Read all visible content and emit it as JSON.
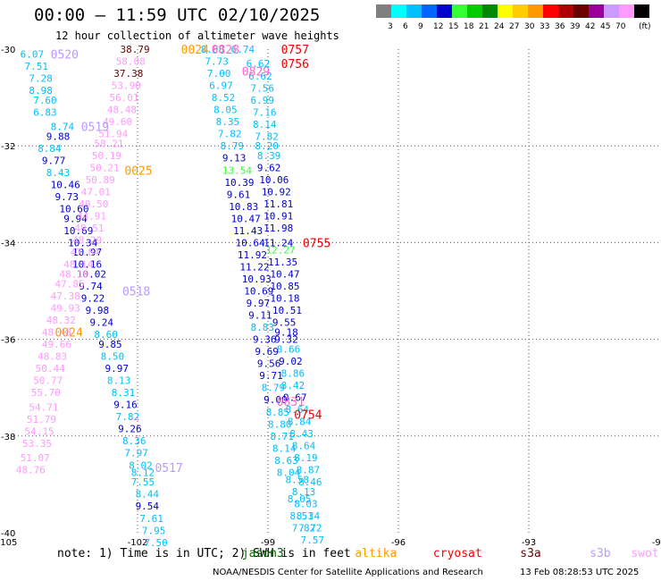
{
  "title": "00:00 – 11:59 UTC 02/10/2025",
  "subtitle": "12 hour collection of altimeter wave heights",
  "legend": {
    "unit": "(ft)",
    "bins": [
      {
        "label": "",
        "color": "#7f7f7f"
      },
      {
        "label": "3",
        "color": "#00ffff"
      },
      {
        "label": "6",
        "color": "#00bfff"
      },
      {
        "label": "9",
        "color": "#0066ff"
      },
      {
        "label": "12",
        "color": "#0000cd"
      },
      {
        "label": "15",
        "color": "#33ff33"
      },
      {
        "label": "18",
        "color": "#00cc00"
      },
      {
        "label": "21",
        "color": "#008800"
      },
      {
        "label": "24",
        "color": "#ffff00"
      },
      {
        "label": "27",
        "color": "#ffcc00"
      },
      {
        "label": "30",
        "color": "#ff9900"
      },
      {
        "label": "33",
        "color": "#ff0000"
      },
      {
        "label": "36",
        "color": "#b00000"
      },
      {
        "label": "39",
        "color": "#6a0000"
      },
      {
        "label": "42",
        "color": "#990099"
      },
      {
        "label": "45",
        "color": "#cc99ff"
      },
      {
        "label": "70",
        "color": "#ff99ff"
      },
      {
        "label": "",
        "color": "#000000"
      }
    ]
  },
  "axes": {
    "x_ticks": [
      "-105",
      "-102",
      "-99",
      "-96",
      "-93",
      "-90"
    ],
    "y_ticks": [
      "-30",
      "-32",
      "-34",
      "-36",
      "-38",
      "-40"
    ],
    "lon_range": [
      -105,
      -90
    ],
    "lat_range": [
      -40,
      -30
    ]
  },
  "pass_labels": [
    {
      "text": "0520",
      "lon": -104.0,
      "lat": -30.1,
      "color": "#bb99ff"
    },
    {
      "text": "0519",
      "lon": -103.3,
      "lat": -31.6,
      "color": "#bb99ff"
    },
    {
      "text": "0518",
      "lon": -102.35,
      "lat": -35.0,
      "color": "#bb99ff"
    },
    {
      "text": "0517",
      "lon": -101.6,
      "lat": -38.65,
      "color": "#bb99ff"
    },
    {
      "text": "0024",
      "lon": -101.0,
      "lat": -30.0,
      "color": "#ff9900"
    },
    {
      "text": "0025",
      "lon": -102.3,
      "lat": -32.5,
      "color": "#ff9900"
    },
    {
      "text": "0024",
      "lon": -103.9,
      "lat": -35.85,
      "color": "#ff9900"
    },
    {
      "text": "0828",
      "lon": -100.3,
      "lat": -30.0,
      "color": "#ff66cc"
    },
    {
      "text": "0829",
      "lon": -99.6,
      "lat": -30.45,
      "color": "#ff66cc"
    },
    {
      "text": "0831",
      "lon": -98.8,
      "lat": -37.28,
      "color": "#ff66cc"
    },
    {
      "text": "0757",
      "lon": -98.7,
      "lat": -30.0,
      "color": "#ee0000"
    },
    {
      "text": "0756",
      "lon": -98.7,
      "lat": -30.3,
      "color": "#ee0000"
    },
    {
      "text": "0755",
      "lon": -98.2,
      "lat": -34.0,
      "color": "#ee0000"
    },
    {
      "text": "0754",
      "lon": -98.4,
      "lat": -37.55,
      "color": "#ee0000"
    }
  ],
  "measurements": [
    {
      "t": "6.07",
      "lon": -104.7,
      "lat": -30.1,
      "c": "#00bfff"
    },
    {
      "t": "7.51",
      "lon": -104.6,
      "lat": -30.35,
      "c": "#00bfff"
    },
    {
      "t": "7.28",
      "lon": -104.5,
      "lat": -30.6,
      "c": "#00bfff"
    },
    {
      "t": "8.98",
      "lon": -104.5,
      "lat": -30.85,
      "c": "#00bfff"
    },
    {
      "t": "7.60",
      "lon": -104.4,
      "lat": -31.05,
      "c": "#00bfff"
    },
    {
      "t": "6.83",
      "lon": -104.4,
      "lat": -31.3,
      "c": "#00bfff"
    },
    {
      "t": "8.74",
      "lon": -104.0,
      "lat": -31.6,
      "c": "#00bfff"
    },
    {
      "t": "9.88",
      "lon": -104.1,
      "lat": -31.8,
      "c": "#0000cd"
    },
    {
      "t": "8.84",
      "lon": -104.3,
      "lat": -32.05,
      "c": "#00bfff"
    },
    {
      "t": "9.77",
      "lon": -104.2,
      "lat": -32.3,
      "c": "#0000cd"
    },
    {
      "t": "8.43",
      "lon": -104.1,
      "lat": -32.55,
      "c": "#00bfff"
    },
    {
      "t": "10.46",
      "lon": -104.0,
      "lat": -32.8,
      "c": "#0000cd"
    },
    {
      "t": "9.73",
      "lon": -103.9,
      "lat": -33.05,
      "c": "#0000cd"
    },
    {
      "t": "10.60",
      "lon": -103.8,
      "lat": -33.3,
      "c": "#0000cd"
    },
    {
      "t": "9.94",
      "lon": -103.7,
      "lat": -33.5,
      "c": "#0000cd"
    },
    {
      "t": "10.69",
      "lon": -103.7,
      "lat": -33.75,
      "c": "#0000cd"
    },
    {
      "t": "10.34",
      "lon": -103.6,
      "lat": -34.0,
      "c": "#0000cd"
    },
    {
      "t": "10.97",
      "lon": -103.5,
      "lat": -34.2,
      "c": "#0000cd"
    },
    {
      "t": "10.16",
      "lon": -103.5,
      "lat": -34.45,
      "c": "#0000cd"
    },
    {
      "t": "10.02",
      "lon": -103.4,
      "lat": -34.65,
      "c": "#0000cd"
    },
    {
      "t": "9.74",
      "lon": -103.35,
      "lat": -34.9,
      "c": "#0000cd"
    },
    {
      "t": "9.22",
      "lon": -103.3,
      "lat": -35.15,
      "c": "#0000cd"
    },
    {
      "t": "9.98",
      "lon": -103.2,
      "lat": -35.4,
      "c": "#0000cd"
    },
    {
      "t": "9.24",
      "lon": -103.1,
      "lat": -35.65,
      "c": "#0000cd"
    },
    {
      "t": "8.60",
      "lon": -103.0,
      "lat": -35.9,
      "c": "#00bfff"
    },
    {
      "t": "9.85",
      "lon": -102.9,
      "lat": -36.1,
      "c": "#0000cd"
    },
    {
      "t": "8.50",
      "lon": -102.85,
      "lat": -36.35,
      "c": "#00bfff"
    },
    {
      "t": "9.97",
      "lon": -102.75,
      "lat": -36.6,
      "c": "#0000cd"
    },
    {
      "t": "8.13",
      "lon": -102.7,
      "lat": -36.85,
      "c": "#00bfff"
    },
    {
      "t": "8.31",
      "lon": -102.6,
      "lat": -37.1,
      "c": "#00bfff"
    },
    {
      "t": "9.16",
      "lon": -102.55,
      "lat": -37.35,
      "c": "#0000cd"
    },
    {
      "t": "7.82",
      "lon": -102.5,
      "lat": -37.6,
      "c": "#00bfff"
    },
    {
      "t": "9.26",
      "lon": -102.45,
      "lat": -37.85,
      "c": "#0000cd"
    },
    {
      "t": "8.36",
      "lon": -102.35,
      "lat": -38.1,
      "c": "#00bfff"
    },
    {
      "t": "7.97",
      "lon": -102.3,
      "lat": -38.35,
      "c": "#00bfff"
    },
    {
      "t": "8.02",
      "lon": -102.2,
      "lat": -38.6,
      "c": "#00bfff"
    },
    {
      "t": "8.12",
      "lon": -102.15,
      "lat": -38.75,
      "c": "#00bfff"
    },
    {
      "t": "7.55",
      "lon": -102.15,
      "lat": -38.95,
      "c": "#00bfff"
    },
    {
      "t": "8.44",
      "lon": -102.05,
      "lat": -39.2,
      "c": "#00bfff"
    },
    {
      "t": "9.54",
      "lon": -102.05,
      "lat": -39.45,
      "c": "#0000cd"
    },
    {
      "t": "7.61",
      "lon": -101.95,
      "lat": -39.7,
      "c": "#00bfff"
    },
    {
      "t": "7.95",
      "lon": -101.9,
      "lat": -39.95,
      "c": "#00bfff"
    },
    {
      "t": "7.50",
      "lon": -101.85,
      "lat": -40.2,
      "c": "#00bfff"
    },
    {
      "t": "38.79",
      "lon": -102.4,
      "lat": -30.0,
      "c": "#6a0000"
    },
    {
      "t": "58.08",
      "lon": -102.5,
      "lat": -30.25,
      "c": "#ff99ff"
    },
    {
      "t": "37.38",
      "lon": -102.55,
      "lat": -30.5,
      "c": "#6a0000"
    },
    {
      "t": "53.90",
      "lon": -102.6,
      "lat": -30.75,
      "c": "#ff99ff"
    },
    {
      "t": "56.01",
      "lon": -102.65,
      "lat": -31.0,
      "c": "#ff99ff"
    },
    {
      "t": "48.48",
      "lon": -102.7,
      "lat": -31.25,
      "c": "#ff99ff"
    },
    {
      "t": "49.60",
      "lon": -102.8,
      "lat": -31.5,
      "c": "#ff99ff"
    },
    {
      "t": "51.94",
      "lon": -102.9,
      "lat": -31.75,
      "c": "#ff99ff"
    },
    {
      "t": "58.21",
      "lon": -103.0,
      "lat": -31.95,
      "c": "#ff99ff"
    },
    {
      "t": "50.19",
      "lon": -103.05,
      "lat": -32.2,
      "c": "#ff99ff"
    },
    {
      "t": "50.21",
      "lon": -103.1,
      "lat": -32.45,
      "c": "#ff99ff"
    },
    {
      "t": "50.89",
      "lon": -103.2,
      "lat": -32.7,
      "c": "#ff99ff"
    },
    {
      "t": "47.01",
      "lon": -103.3,
      "lat": -32.95,
      "c": "#ff99ff"
    },
    {
      "t": "49.50",
      "lon": -103.35,
      "lat": -33.2,
      "c": "#ff99ff"
    },
    {
      "t": "44.91",
      "lon": -103.4,
      "lat": -33.45,
      "c": "#ff99ff"
    },
    {
      "t": "49.51",
      "lon": -103.45,
      "lat": -33.7,
      "c": "#ff99ff"
    },
    {
      "t": "48.29",
      "lon": -103.5,
      "lat": -33.95,
      "c": "#ff99ff"
    },
    {
      "t": "47.84",
      "lon": -103.55,
      "lat": -34.2,
      "c": "#ff99ff"
    },
    {
      "t": "48.14",
      "lon": -103.7,
      "lat": -34.45,
      "c": "#ff99ff"
    },
    {
      "t": "48.10",
      "lon": -103.8,
      "lat": -34.65,
      "c": "#ff99ff"
    },
    {
      "t": "47.85",
      "lon": -103.9,
      "lat": -34.85,
      "c": "#ff99ff"
    },
    {
      "t": "47.38",
      "lon": -104.0,
      "lat": -35.1,
      "c": "#ff99ff"
    },
    {
      "t": "49.93",
      "lon": -104.0,
      "lat": -35.35,
      "c": "#ff99ff"
    },
    {
      "t": "48.32",
      "lon": -104.1,
      "lat": -35.6,
      "c": "#ff99ff"
    },
    {
      "t": "48.48",
      "lon": -104.2,
      "lat": -35.85,
      "c": "#ff99ff"
    },
    {
      "t": "49.66",
      "lon": -104.2,
      "lat": -36.1,
      "c": "#ff99ff"
    },
    {
      "t": "48.83",
      "lon": -104.3,
      "lat": -36.35,
      "c": "#ff99ff"
    },
    {
      "t": "50.44",
      "lon": -104.35,
      "lat": -36.6,
      "c": "#ff99ff"
    },
    {
      "t": "50.77",
      "lon": -104.4,
      "lat": -36.85,
      "c": "#ff99ff"
    },
    {
      "t": "55.70",
      "lon": -104.45,
      "lat": -37.1,
      "c": "#ff99ff"
    },
    {
      "t": "54.71",
      "lon": -104.5,
      "lat": -37.4,
      "c": "#ff99ff"
    },
    {
      "t": "51.79",
      "lon": -104.55,
      "lat": -37.65,
      "c": "#ff99ff"
    },
    {
      "t": "54.15",
      "lon": -104.6,
      "lat": -37.9,
      "c": "#ff99ff"
    },
    {
      "t": "53.35",
      "lon": -104.65,
      "lat": -38.15,
      "c": "#ff99ff"
    },
    {
      "t": "51.07",
      "lon": -104.7,
      "lat": -38.45,
      "c": "#ff99ff"
    },
    {
      "t": "48.76",
      "lon": -104.8,
      "lat": -38.7,
      "c": "#ff99ff"
    },
    {
      "t": "8.68",
      "lon": -100.55,
      "lat": -30.0,
      "c": "#00bfff"
    },
    {
      "t": "7.73",
      "lon": -100.45,
      "lat": -30.25,
      "c": "#00bfff"
    },
    {
      "t": "7.00",
      "lon": -100.4,
      "lat": -30.5,
      "c": "#00bfff"
    },
    {
      "t": "6.97",
      "lon": -100.35,
      "lat": -30.75,
      "c": "#00bfff"
    },
    {
      "t": "8.52",
      "lon": -100.3,
      "lat": -31.0,
      "c": "#00bfff"
    },
    {
      "t": "8.05",
      "lon": -100.25,
      "lat": -31.25,
      "c": "#00bfff"
    },
    {
      "t": "8.35",
      "lon": -100.2,
      "lat": -31.5,
      "c": "#00bfff"
    },
    {
      "t": "7.82",
      "lon": -100.15,
      "lat": -31.75,
      "c": "#00bfff"
    },
    {
      "t": "8.79",
      "lon": -100.1,
      "lat": -32.0,
      "c": "#00bfff"
    },
    {
      "t": "9.13",
      "lon": -100.05,
      "lat": -32.25,
      "c": "#0000cd"
    },
    {
      "t": "13.54",
      "lon": -100.05,
      "lat": -32.5,
      "c": "#33ff33"
    },
    {
      "t": "10.39",
      "lon": -100.0,
      "lat": -32.75,
      "c": "#0000cd"
    },
    {
      "t": "9.61",
      "lon": -99.95,
      "lat": -33.0,
      "c": "#0000cd"
    },
    {
      "t": "10.83",
      "lon": -99.9,
      "lat": -33.25,
      "c": "#0000cd"
    },
    {
      "t": "10.47",
      "lon": -99.85,
      "lat": -33.5,
      "c": "#0000cd"
    },
    {
      "t": "11.43",
      "lon": -99.8,
      "lat": -33.75,
      "c": "#0000cd"
    },
    {
      "t": "10.64",
      "lon": -99.75,
      "lat": -34.0,
      "c": "#0000cd"
    },
    {
      "t": "11.92",
      "lon": -99.7,
      "lat": -34.25,
      "c": "#0000cd"
    },
    {
      "t": "11.22",
      "lon": -99.65,
      "lat": -34.5,
      "c": "#0000cd"
    },
    {
      "t": "10.93",
      "lon": -99.6,
      "lat": -34.75,
      "c": "#0000cd"
    },
    {
      "t": "10.69",
      "lon": -99.55,
      "lat": -35.0,
      "c": "#0000cd"
    },
    {
      "t": "9.97",
      "lon": -99.5,
      "lat": -35.25,
      "c": "#0000cd"
    },
    {
      "t": "9.11",
      "lon": -99.45,
      "lat": -35.5,
      "c": "#0000cd"
    },
    {
      "t": "8.83",
      "lon": -99.4,
      "lat": -35.75,
      "c": "#00bfff"
    },
    {
      "t": "9.36",
      "lon": -99.35,
      "lat": -36.0,
      "c": "#0000cd"
    },
    {
      "t": "9.69",
      "lon": -99.3,
      "lat": -36.25,
      "c": "#0000cd"
    },
    {
      "t": "9.56",
      "lon": -99.25,
      "lat": -36.5,
      "c": "#0000cd"
    },
    {
      "t": "9.71",
      "lon": -99.2,
      "lat": -36.75,
      "c": "#0000cd"
    },
    {
      "t": "8.79",
      "lon": -99.15,
      "lat": -37.0,
      "c": "#00bfff"
    },
    {
      "t": "9.00",
      "lon": -99.1,
      "lat": -37.25,
      "c": "#0000cd"
    },
    {
      "t": "8.85",
      "lon": -99.05,
      "lat": -37.5,
      "c": "#00bfff"
    },
    {
      "t": "8.80",
      "lon": -99.0,
      "lat": -37.75,
      "c": "#00bfff"
    },
    {
      "t": "8.71",
      "lon": -98.95,
      "lat": -38.0,
      "c": "#00bfff"
    },
    {
      "t": "8.14",
      "lon": -98.9,
      "lat": -38.25,
      "c": "#00bfff"
    },
    {
      "t": "8.63",
      "lon": -98.85,
      "lat": -38.5,
      "c": "#00bfff"
    },
    {
      "t": "8.04",
      "lon": -98.8,
      "lat": -38.75,
      "c": "#00bfff"
    },
    {
      "t": "6.74",
      "lon": -99.85,
      "lat": -30.0,
      "c": "#00bfff"
    },
    {
      "t": "6.62",
      "lon": -99.5,
      "lat": -30.3,
      "c": "#00bfff"
    },
    {
      "t": "6.62",
      "lon": -99.45,
      "lat": -30.55,
      "c": "#00bfff"
    },
    {
      "t": "7.56",
      "lon": -99.4,
      "lat": -30.8,
      "c": "#00bfff"
    },
    {
      "t": "6.99",
      "lon": -99.4,
      "lat": -31.05,
      "c": "#00bfff"
    },
    {
      "t": "7.16",
      "lon": -99.35,
      "lat": -31.3,
      "c": "#00bfff"
    },
    {
      "t": "8.14",
      "lon": -99.35,
      "lat": -31.55,
      "c": "#00bfff"
    },
    {
      "t": "7.82",
      "lon": -99.3,
      "lat": -31.8,
      "c": "#00bfff"
    },
    {
      "t": "8.20",
      "lon": -99.3,
      "lat": -32.0,
      "c": "#00bfff"
    },
    {
      "t": "8.39",
      "lon": -99.25,
      "lat": -32.2,
      "c": "#00bfff"
    },
    {
      "t": "9.62",
      "lon": -99.25,
      "lat": -32.45,
      "c": "#0000cd"
    },
    {
      "t": "10.06",
      "lon": -99.2,
      "lat": -32.7,
      "c": "#0000cd"
    },
    {
      "t": "10.92",
      "lon": -99.15,
      "lat": -32.95,
      "c": "#0000cd"
    },
    {
      "t": "11.81",
      "lon": -99.1,
      "lat": -33.2,
      "c": "#0000cd"
    },
    {
      "t": "10.91",
      "lon": -99.1,
      "lat": -33.45,
      "c": "#0000cd"
    },
    {
      "t": "11.98",
      "lon": -99.1,
      "lat": -33.7,
      "c": "#0000cd"
    },
    {
      "t": "11.24",
      "lon": -99.1,
      "lat": -34.0,
      "c": "#0000cd"
    },
    {
      "t": "12.27",
      "lon": -99.05,
      "lat": -34.15,
      "c": "#33ff33"
    },
    {
      "t": "11.35",
      "lon": -99.0,
      "lat": -34.4,
      "c": "#0000cd"
    },
    {
      "t": "10.47",
      "lon": -98.95,
      "lat": -34.65,
      "c": "#0000cd"
    },
    {
      "t": "10.85",
      "lon": -98.95,
      "lat": -34.9,
      "c": "#0000cd"
    },
    {
      "t": "10.18",
      "lon": -98.95,
      "lat": -35.15,
      "c": "#0000cd"
    },
    {
      "t": "10.51",
      "lon": -98.9,
      "lat": -35.4,
      "c": "#0000cd"
    },
    {
      "t": "9.55",
      "lon": -98.9,
      "lat": -35.65,
      "c": "#0000cd"
    },
    {
      "t": "9.18",
      "lon": -98.85,
      "lat": -35.85,
      "c": "#0000cd"
    },
    {
      "t": "9.32",
      "lon": -98.85,
      "lat": -36.0,
      "c": "#0000cd"
    },
    {
      "t": "8.66",
      "lon": -98.8,
      "lat": -36.2,
      "c": "#00bfff"
    },
    {
      "t": "9.02",
      "lon": -98.75,
      "lat": -36.45,
      "c": "#0000cd"
    },
    {
      "t": "8.86",
      "lon": -98.7,
      "lat": -36.7,
      "c": "#00bfff"
    },
    {
      "t": "8.42",
      "lon": -98.7,
      "lat": -36.95,
      "c": "#00bfff"
    },
    {
      "t": "9.67",
      "lon": -98.65,
      "lat": -37.2,
      "c": "#0000cd"
    },
    {
      "t": "8.64",
      "lon": -98.6,
      "lat": -37.45,
      "c": "#00bfff"
    },
    {
      "t": "8.84",
      "lon": -98.55,
      "lat": -37.7,
      "c": "#00bfff"
    },
    {
      "t": "8.43",
      "lon": -98.5,
      "lat": -37.95,
      "c": "#00bfff"
    },
    {
      "t": "8.64",
      "lon": -98.45,
      "lat": -38.2,
      "c": "#00bfff"
    },
    {
      "t": "8.19",
      "lon": -98.4,
      "lat": -38.45,
      "c": "#00bfff"
    },
    {
      "t": "8.87",
      "lon": -98.35,
      "lat": -38.7,
      "c": "#00bfff"
    },
    {
      "t": "8.46",
      "lon": -98.3,
      "lat": -38.95,
      "c": "#00bfff"
    },
    {
      "t": "8.13",
      "lon": -98.45,
      "lat": -39.15,
      "c": "#00bfff"
    },
    {
      "t": "8.03",
      "lon": -98.4,
      "lat": -39.4,
      "c": "#00bfff"
    },
    {
      "t": "8.34",
      "lon": -98.35,
      "lat": -39.65,
      "c": "#00bfff"
    },
    {
      "t": "7.72",
      "lon": -98.3,
      "lat": -39.9,
      "c": "#00bfff"
    },
    {
      "t": "7.57",
      "lon": -98.25,
      "lat": -40.15,
      "c": "#00bfff"
    },
    {
      "t": "8.58",
      "lon": -98.6,
      "lat": -38.9,
      "c": "#00bfff"
    },
    {
      "t": "8.05",
      "lon": -98.55,
      "lat": -39.3,
      "c": "#00bfff"
    },
    {
      "t": "8.51",
      "lon": -98.5,
      "lat": -39.65,
      "c": "#00bfff"
    },
    {
      "t": "7.82",
      "lon": -98.45,
      "lat": -39.9,
      "c": "#00bfff"
    }
  ],
  "note": {
    "text": "note: 1) Time is in UTC; 2) SWH is in feet",
    "missions": [
      {
        "name": "jason3",
        "color": "#006600",
        "lon": -99.6
      },
      {
        "name": "altika",
        "color": "#ff9900",
        "lon": -97.0
      },
      {
        "name": "cryosat",
        "color": "#ee0000",
        "lon": -95.2
      },
      {
        "name": "s3a",
        "color": "#6a0000",
        "lon": -93.2
      },
      {
        "name": "s3b",
        "color": "#bb99ff",
        "lon": -91.6
      },
      {
        "name": "swot",
        "color": "#ff99ff",
        "lon": -90.65
      }
    ]
  },
  "credit": "NOAA/NESDIS Center for Satellite Applications and Research",
  "timestamp": "13 Feb 08:28:53 UTC 2025"
}
